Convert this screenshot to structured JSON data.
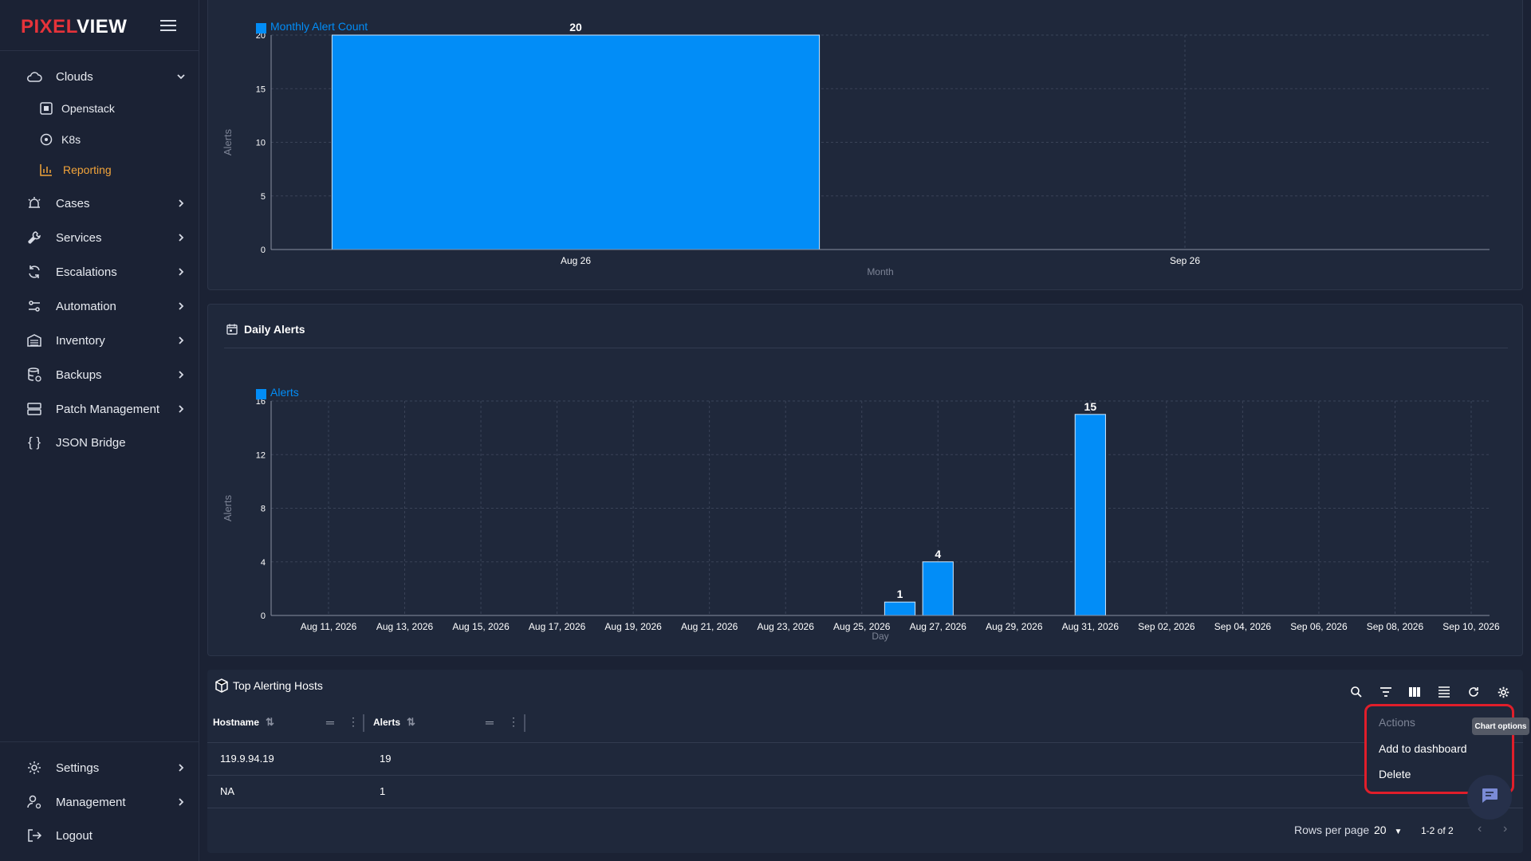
{
  "app": {
    "logo_part1": "PIXEL",
    "logo_part2": "VIEW"
  },
  "sidebar": {
    "clouds": {
      "label": "Clouds",
      "children": [
        {
          "label": "Openstack"
        },
        {
          "label": "K8s"
        },
        {
          "label": "Reporting"
        }
      ]
    },
    "items": [
      {
        "label": "Cases"
      },
      {
        "label": "Services"
      },
      {
        "label": "Escalations"
      },
      {
        "label": "Automation"
      },
      {
        "label": "Inventory"
      },
      {
        "label": "Backups"
      },
      {
        "label": "Patch Management"
      },
      {
        "label": "JSON Bridge"
      }
    ],
    "bottom": [
      {
        "label": "Settings"
      },
      {
        "label": "Management"
      },
      {
        "label": "Logout"
      }
    ]
  },
  "colors": {
    "accent": "#f2a43a",
    "bar": "#028df7",
    "logo_red": "#e6333a",
    "highlight": "#e01e2a"
  },
  "monthly_panel": {
    "title": ""
  },
  "daily_panel": {
    "title": "Daily Alerts"
  },
  "chart_data": [
    {
      "type": "bar",
      "legend": "Monthly Alert Count",
      "categories": [
        "Aug 26",
        "Sep 26"
      ],
      "values": [
        20,
        0
      ],
      "value_labels": [
        "20",
        ""
      ],
      "ylabel": "Alerts",
      "xlabel": "Month",
      "ylim": [
        0,
        20
      ],
      "yticks": [
        0,
        5,
        10,
        15,
        20
      ],
      "grid": true,
      "legend_position": "top-left"
    },
    {
      "type": "bar",
      "legend": "Alerts",
      "x_dates": [
        "Aug 26, 2026",
        "Aug 27, 2026",
        "Aug 31, 2026"
      ],
      "values": [
        1,
        4,
        15
      ],
      "xticks": [
        "Aug 11, 2026",
        "Aug 13, 2026",
        "Aug 15, 2026",
        "Aug 17, 2026",
        "Aug 19, 2026",
        "Aug 21, 2026",
        "Aug 23, 2026",
        "Aug 25, 2026",
        "Aug 27, 2026",
        "Aug 29, 2026",
        "Aug 31, 2026",
        "Sep 02, 2026",
        "Sep 04, 2026",
        "Sep 06, 2026",
        "Sep 08, 2026",
        "Sep 10, 2026"
      ],
      "ylabel": "Alerts",
      "xlabel": "Day",
      "ylim": [
        0,
        16
      ],
      "yticks": [
        0,
        4,
        8,
        12,
        16
      ],
      "grid": true,
      "legend_position": "top-left"
    }
  ],
  "table": {
    "title": "Top Alerting Hosts",
    "columns": [
      "Hostname",
      "Alerts"
    ],
    "rows": [
      {
        "hostname": "119.9.94.19",
        "alerts": "19"
      },
      {
        "hostname": "NA",
        "alerts": "1"
      }
    ],
    "rows_per_page_label": "Rows per page",
    "rows_per_page": "20",
    "pagination": "1-2 of 2"
  },
  "actions_menu": {
    "header": "Actions",
    "items": [
      "Add to dashboard",
      "Delete"
    ],
    "tooltip": "Chart options"
  }
}
